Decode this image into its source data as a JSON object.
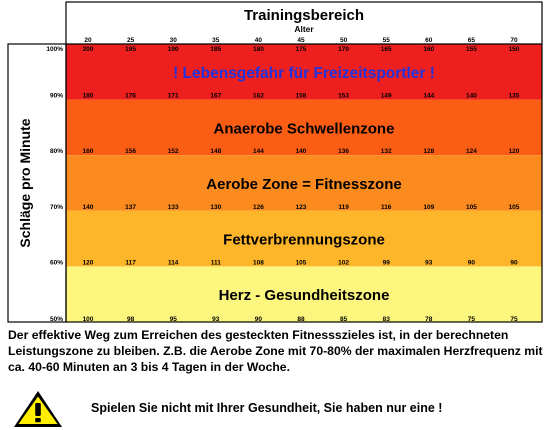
{
  "chart_data": {
    "type": "heatmap",
    "title": "Trainingsbereich",
    "xlabel": "Alter",
    "ylabel": "Schläge pro Minute",
    "ages": [
      20,
      25,
      30,
      35,
      40,
      45,
      50,
      55,
      60,
      65,
      70
    ],
    "percent_levels": [
      100,
      90,
      80,
      70,
      60,
      50
    ],
    "percent_labels": [
      "100%",
      "90%",
      "80%",
      "70%",
      "60%",
      "50%"
    ],
    "rows": [
      {
        "percent": 100,
        "values": [
          200,
          195,
          190,
          185,
          180,
          175,
          170,
          165,
          160,
          155,
          150
        ]
      },
      {
        "percent": 90,
        "values": [
          180,
          176,
          171,
          167,
          162,
          158,
          153,
          149,
          144,
          140,
          135
        ]
      },
      {
        "percent": 80,
        "values": [
          160,
          156,
          152,
          148,
          144,
          140,
          136,
          132,
          128,
          124,
          120
        ]
      },
      {
        "percent": 70,
        "values": [
          140,
          137,
          133,
          130,
          126,
          123,
          119,
          116,
          109,
          105,
          105
        ]
      },
      {
        "percent": 60,
        "values": [
          120,
          117,
          114,
          111,
          108,
          105,
          102,
          99,
          93,
          90,
          90
        ]
      },
      {
        "percent": 50,
        "values": [
          100,
          98,
          95,
          93,
          90,
          88,
          85,
          83,
          78,
          75,
          75
        ]
      }
    ],
    "zones": [
      {
        "name": "! Lebensgefahr für Freizeitsportler !",
        "from": 90,
        "to": 100,
        "color": "#ee1f1f",
        "text_color": "#2233dd"
      },
      {
        "name": "Anaerobe Schwellenzone",
        "from": 80,
        "to": 90,
        "color": "#fb5d14",
        "text_color": "#000000"
      },
      {
        "name": "Aerobe Zone = Fitnesszone",
        "from": 70,
        "to": 80,
        "color": "#fb8b1e",
        "text_color": "#000000"
      },
      {
        "name": "Fettverbrennungszone",
        "from": 60,
        "to": 70,
        "color": "#fdb52a",
        "text_color": "#000000"
      },
      {
        "name": "Herz - Gesundheitszone",
        "from": 50,
        "to": 60,
        "color": "#fcf57e",
        "text_color": "#000000"
      }
    ]
  },
  "description": "Der effektive Weg zum Erreichen des gesteckten Fitnessszieles ist, in der berechneten Leistungszone zu bleiben. Z.B. die Aerobe Zone mit 70-80% der maximalen Herzfrequenz mit ca. 40-60 Minuten an 3 bis 4 Tagen in der Woche.",
  "warning": {
    "text": "Spielen Sie nicht mit Ihrer Gesundheit, Sie haben nur eine !",
    "icon": "warning-triangle-icon"
  }
}
